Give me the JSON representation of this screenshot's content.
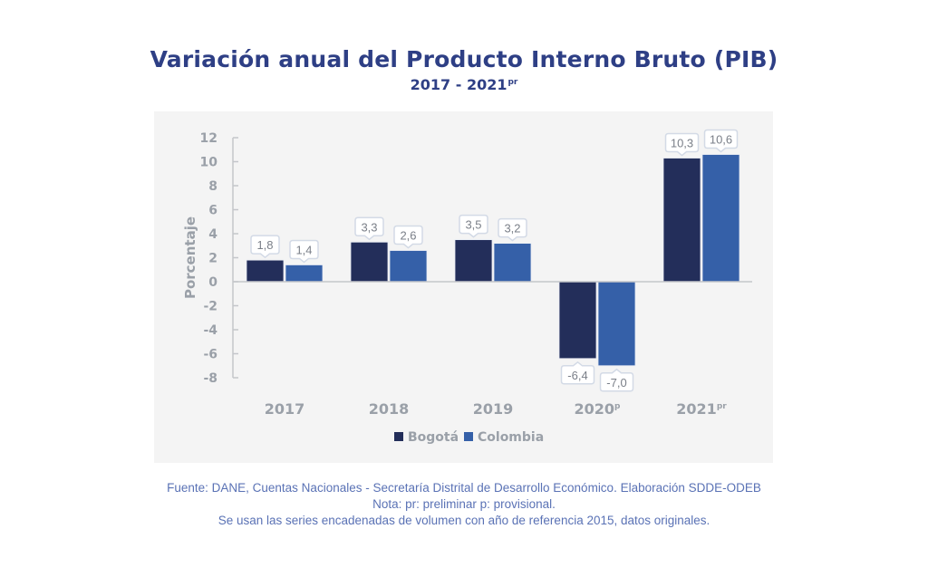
{
  "header": {
    "title": "Variación anual del Producto Interno Bruto (PIB)",
    "subtitle_main": "2017 - 2021",
    "subtitle_sup": "pr"
  },
  "footer": {
    "lines": [
      "Fuente: DANE, Cuentas Nacionales - Secretaría Distrital de Desarrollo Económico. Elaboración SDDE-ODEB",
      "Nota: pr: preliminar p: provisional.",
      "Se usan las series encadenadas de volumen con año de referencia 2015, datos originales."
    ]
  },
  "colors": {
    "bogota": "#232e5a",
    "colombia": "#3560a8",
    "title": "#2e3f85",
    "axis_text": "#9aa0a8",
    "footer_text": "#5a72b5"
  },
  "chart_data": {
    "type": "bar",
    "title": "Variación anual del Producto Interno Bruto (PIB)",
    "subtitle": "2017 - 2021pr",
    "xlabel": "",
    "ylabel": "Porcentaje",
    "ylim": [
      -8,
      12
    ],
    "yticks": [
      12,
      10,
      8,
      6,
      4,
      2,
      0,
      -2,
      -4,
      -6,
      -8
    ],
    "grid": false,
    "legend_position": "bottom-center",
    "categories": [
      {
        "label": "2017",
        "sup": ""
      },
      {
        "label": "2018",
        "sup": ""
      },
      {
        "label": "2019",
        "sup": ""
      },
      {
        "label": "2020",
        "sup": "p"
      },
      {
        "label": "2021",
        "sup": "pr"
      }
    ],
    "series": [
      {
        "name": "Bogotá",
        "color": "#232e5a",
        "values": [
          1.8,
          3.3,
          3.5,
          -6.4,
          10.3
        ],
        "labels": [
          "1,8",
          "3,3",
          "3,5",
          "-6,4",
          "10,3"
        ]
      },
      {
        "name": "Colombia",
        "color": "#3560a8",
        "values": [
          1.4,
          2.6,
          3.2,
          -7.0,
          10.6
        ],
        "labels": [
          "1,4",
          "2,6",
          "3,2",
          "-7,0",
          "10,6"
        ]
      }
    ]
  }
}
